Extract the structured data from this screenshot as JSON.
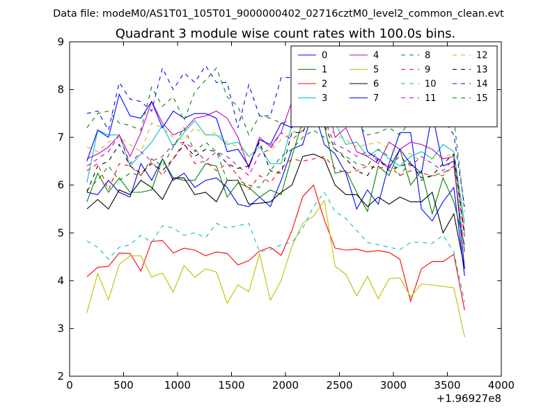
{
  "suptitle": "Data file: modeM0/AS1T01_105T01_9000000402_02716cztM0_level2_common_clean.evt",
  "chart_data": {
    "type": "line",
    "title": "Quadrant 3 module wise count rates with 100.0s bins.",
    "xlabel": "",
    "ylabel": "",
    "x_offset_label": "+1.96927e8",
    "xlim": [
      0,
      4000
    ],
    "ylim": [
      2,
      9
    ],
    "xticks": [
      "0",
      "500",
      "1000",
      "1500",
      "2000",
      "2500",
      "3000",
      "3500",
      "4000"
    ],
    "yticks": [
      "2",
      "3",
      "4",
      "5",
      "6",
      "7",
      "8",
      "9"
    ],
    "grid": false,
    "legend_position": "top-right",
    "x": [
      160,
      260,
      360,
      460,
      560,
      660,
      760,
      860,
      960,
      1060,
      1160,
      1260,
      1360,
      1460,
      1560,
      1660,
      1760,
      1860,
      1960,
      2060,
      2160,
      2260,
      2360,
      2460,
      2560,
      2660,
      2760,
      2860,
      2960,
      3060,
      3160,
      3260,
      3360,
      3460,
      3560,
      3660
    ],
    "series": [
      {
        "name": "0",
        "color": "#0000ff",
        "dash": "solid",
        "values": [
          5.85,
          5.8,
          6.1,
          5.85,
          5.75,
          6.45,
          6.1,
          6.55,
          6.1,
          6.25,
          5.95,
          6.1,
          6.15,
          5.95,
          5.6,
          5.55,
          5.75,
          5.55,
          6.1,
          6.75,
          6.85,
          7.6,
          6.85,
          6.65,
          6.25,
          5.5,
          5.9,
          5.6,
          6.45,
          7.1,
          7.1,
          5.5,
          5.25,
          5.65,
          5.95,
          4.1
        ]
      },
      {
        "name": "1",
        "color": "#008000",
        "dash": "solid",
        "values": [
          5.65,
          6.25,
          5.85,
          6.15,
          5.85,
          5.85,
          5.9,
          6.55,
          6.15,
          6.1,
          6.1,
          6.45,
          6.4,
          5.75,
          6.05,
          5.95,
          5.75,
          5.9,
          5.8,
          6.6,
          7.35,
          7.6,
          7.25,
          6.25,
          6.3,
          5.85,
          5.45,
          6.4,
          6.2,
          6.75,
          6.0,
          6.3,
          5.4,
          6.15,
          5.65,
          4.75
        ]
      },
      {
        "name": "2",
        "color": "#ff0000",
        "dash": "solid",
        "values": [
          4.08,
          4.28,
          4.3,
          4.58,
          4.57,
          4.2,
          4.82,
          4.84,
          4.58,
          4.68,
          4.64,
          4.52,
          4.6,
          4.57,
          4.33,
          4.42,
          4.62,
          4.7,
          4.53,
          5.05,
          5.76,
          6.0,
          5.27,
          4.68,
          4.64,
          4.66,
          4.6,
          4.63,
          4.59,
          4.45,
          3.57,
          4.25,
          4.4,
          4.4,
          4.55,
          3.38
        ]
      },
      {
        "name": "3",
        "color": "#00bfbf",
        "dash": "solid",
        "values": [
          6.05,
          7.15,
          7.05,
          7.05,
          6.4,
          6.65,
          6.9,
          7.25,
          6.8,
          7.1,
          7.35,
          7.05,
          7.05,
          6.85,
          6.9,
          6.6,
          6.8,
          6.45,
          6.45,
          7.25,
          8.0,
          8.8,
          7.8,
          7.3,
          6.85,
          6.9,
          6.6,
          6.75,
          6.55,
          6.4,
          6.6,
          6.7,
          6.55,
          6.85,
          6.7,
          5.2
        ]
      },
      {
        "name": "4",
        "color": "#bf00bf",
        "dash": "solid",
        "values": [
          6.55,
          6.65,
          6.8,
          7.05,
          6.6,
          7.1,
          7.75,
          7.3,
          7.05,
          7.15,
          7.4,
          7.45,
          7.55,
          7.4,
          7.0,
          6.35,
          7.0,
          6.8,
          7.1,
          7.75,
          7.8,
          8.0,
          7.95,
          7.0,
          7.2,
          6.7,
          6.6,
          6.45,
          6.9,
          6.75,
          6.9,
          6.85,
          6.75,
          6.55,
          6.6,
          5.0
        ]
      },
      {
        "name": "5",
        "color": "#bfbf00",
        "dash": "solid",
        "values": [
          3.33,
          4.15,
          3.6,
          4.34,
          4.52,
          4.52,
          4.08,
          4.16,
          3.76,
          4.32,
          4.07,
          4.25,
          4.18,
          3.53,
          3.91,
          3.77,
          4.56,
          3.59,
          4.0,
          4.72,
          5.2,
          5.35,
          5.68,
          4.3,
          4.13,
          3.68,
          4.09,
          3.62,
          4.04,
          4.06,
          3.66,
          3.93,
          3.91,
          3.88,
          3.85,
          2.82
        ]
      },
      {
        "name": "6",
        "color": "#000000",
        "dash": "solid",
        "values": [
          5.5,
          5.7,
          5.5,
          5.9,
          5.8,
          6.1,
          5.95,
          5.7,
          6.15,
          6.15,
          5.8,
          5.85,
          5.65,
          6.1,
          6.1,
          5.6,
          5.62,
          5.65,
          5.85,
          6.0,
          6.6,
          6.65,
          6.55,
          6.0,
          5.8,
          5.8,
          5.55,
          5.75,
          5.6,
          5.75,
          5.65,
          5.65,
          5.85,
          5.0,
          5.4,
          4.25
        ]
      },
      {
        "name": "7",
        "color": "#0000ff",
        "dash": "solid",
        "values": [
          6.5,
          7.15,
          7.0,
          7.9,
          7.45,
          7.4,
          7.75,
          7.2,
          7.55,
          7.4,
          7.5,
          7.5,
          7.4,
          6.7,
          6.75,
          6.4,
          6.95,
          6.85,
          7.3,
          7.2,
          7.55,
          8.65,
          7.75,
          7.35,
          7.3,
          7.65,
          6.7,
          6.55,
          6.35,
          6.75,
          6.45,
          6.25,
          7.5,
          6.4,
          6.5,
          4.25
        ]
      },
      {
        "name": "8",
        "color": "#008000",
        "dash": "dashed",
        "values": [
          5.9,
          6.1,
          6.4,
          6.1,
          6.25,
          6.2,
          6.55,
          6.4,
          6.8,
          7.2,
          6.7,
          6.9,
          6.7,
          6.1,
          6.1,
          6.0,
          5.95,
          6.3,
          6.6,
          6.75,
          7.0,
          7.15,
          7.0,
          6.75,
          6.6,
          6.45,
          6.4,
          6.75,
          6.6,
          6.2,
          6.5,
          6.1,
          6.2,
          6.25,
          6.4,
          4.6
        ]
      },
      {
        "name": "9",
        "color": "#ff0000",
        "dash": "dashed",
        "values": [
          6.3,
          6.45,
          5.9,
          6.45,
          6.4,
          6.2,
          6.5,
          6.2,
          6.55,
          6.9,
          6.45,
          6.5,
          6.3,
          6.45,
          6.2,
          5.9,
          6.2,
          6.05,
          6.35,
          6.55,
          6.5,
          6.55,
          6.6,
          6.35,
          6.25,
          6.3,
          6.4,
          6.35,
          6.4,
          6.2,
          6.3,
          6.25,
          6.2,
          6.2,
          6.4,
          4.6
        ]
      },
      {
        "name": "10",
        "color": "#00bfbf",
        "dash": "dashed",
        "values": [
          4.83,
          4.7,
          4.45,
          4.7,
          4.75,
          4.95,
          4.8,
          5.15,
          5.1,
          4.95,
          5.0,
          4.9,
          5.2,
          5.1,
          5.15,
          5.2,
          4.6,
          4.65,
          4.75,
          4.8,
          5.1,
          5.55,
          5.85,
          5.45,
          5.3,
          5.05,
          4.8,
          4.75,
          4.7,
          4.65,
          4.8,
          4.8,
          4.78,
          4.95,
          4.6,
          3.55
        ]
      },
      {
        "name": "11",
        "color": "#bf00bf",
        "dash": "dashed",
        "values": [
          6.4,
          6.55,
          6.7,
          7.05,
          6.45,
          6.7,
          6.5,
          6.6,
          6.85,
          6.9,
          6.75,
          6.5,
          6.7,
          6.6,
          6.4,
          6.2,
          6.65,
          6.75,
          7.1,
          6.95,
          7.15,
          7.7,
          7.35,
          6.85,
          6.75,
          6.6,
          6.7,
          6.5,
          6.4,
          6.6,
          6.4,
          6.6,
          6.45,
          6.3,
          6.55,
          4.9
        ]
      },
      {
        "name": "12",
        "color": "#bfbf00",
        "dash": "dashed",
        "values": [
          6.8,
          6.7,
          6.9,
          7.0,
          6.85,
          6.7,
          7.3,
          7.2,
          7.0,
          6.95,
          7.2,
          7.05,
          7.1,
          6.9,
          6.8,
          6.6,
          6.8,
          6.7,
          6.95,
          7.1,
          7.2,
          7.4,
          7.3,
          7.05,
          6.95,
          6.8,
          6.85,
          6.9,
          6.75,
          6.7,
          6.65,
          6.5,
          6.55,
          6.6,
          6.65,
          5.0
        ]
      },
      {
        "name": "13",
        "color": "#000000",
        "dash": "dashed",
        "values": [
          5.85,
          6.4,
          6.5,
          6.85,
          6.4,
          6.25,
          6.45,
          6.3,
          6.55,
          6.85,
          6.6,
          6.75,
          6.7,
          6.45,
          6.35,
          6.4,
          6.9,
          6.3,
          6.25,
          7.1,
          7.1,
          7.65,
          7.25,
          6.75,
          6.55,
          6.3,
          6.2,
          6.55,
          6.3,
          6.4,
          6.45,
          6.15,
          6.2,
          6.45,
          6.65,
          4.95
        ]
      },
      {
        "name": "14",
        "color": "#0000ff",
        "dash": "dashed",
        "values": [
          7.5,
          7.55,
          7.15,
          8.15,
          7.8,
          7.75,
          7.55,
          8.45,
          8.0,
          8.35,
          8.15,
          8.5,
          8.15,
          8.15,
          7.2,
          8.1,
          7.45,
          7.45,
          8.25,
          8.25,
          8.1,
          8.9,
          8.2,
          7.85,
          7.5,
          7.6,
          7.65,
          7.4,
          7.5,
          7.6,
          7.6,
          7.4,
          7.45,
          7.4,
          7.05,
          5.55
        ]
      },
      {
        "name": "15",
        "color": "#008000",
        "dash": "dashed",
        "values": [
          7.2,
          7.5,
          7.55,
          7.3,
          7.25,
          7.15,
          8.05,
          7.65,
          7.85,
          7.35,
          7.95,
          8.2,
          8.45,
          7.85,
          7.65,
          7.05,
          7.45,
          7.4,
          7.3,
          7.35,
          7.55,
          7.7,
          7.6,
          7.5,
          7.45,
          7.3,
          7.05,
          7.1,
          7.2,
          7.05,
          7.35,
          7.3,
          7.25,
          7.3,
          7.4,
          5.45
        ]
      }
    ]
  }
}
